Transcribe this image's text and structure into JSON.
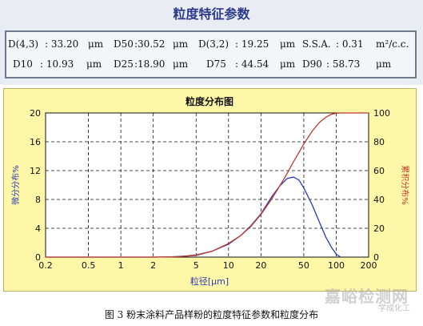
{
  "report": {
    "title": "粒度特征参数",
    "params": [
      {
        "label": "D(4,3)",
        "value": ": 33.20",
        "unit": "μm"
      },
      {
        "label": "D50",
        "value": ":30.52",
        "unit": "μm"
      },
      {
        "label": "D(3,2)",
        "value": ": 19.25",
        "unit": "μm"
      },
      {
        "label": "S.S.A.",
        "value": ": 0.31",
        "unit": "m²/c.c."
      },
      {
        "label": "D10",
        "value": ": 10.93",
        "unit": "μm"
      },
      {
        "label": "D25",
        "value": ":18.90",
        "unit": "μm"
      },
      {
        "label": "D75",
        "value": ": 44.54",
        "unit": "μm"
      },
      {
        "label": "D90",
        "value": ": 58.73",
        "unit": "μm"
      }
    ]
  },
  "chart_data": {
    "type": "line",
    "title": "粒度分布图",
    "xlabel": "粒径[μm]",
    "ylabel_left": "微分分布%",
    "ylabel_right": "累积分布%",
    "x_scale": "log",
    "xlim": [
      0.2,
      200
    ],
    "x_ticks": [
      0.2,
      0.5,
      1,
      2,
      5,
      10,
      20,
      50,
      100,
      200
    ],
    "y_left_lim": [
      0,
      20
    ],
    "y_left_ticks": [
      0,
      4,
      8,
      12,
      16,
      20
    ],
    "y_right_lim": [
      0,
      100
    ],
    "y_right_ticks": [
      0,
      20,
      40,
      60,
      80,
      100
    ],
    "grid": true,
    "colors": {
      "differential": "#2a3bb5",
      "cumulative": "#c0392b",
      "grid": "#111111",
      "background": "#ffffff"
    },
    "series": [
      {
        "axis": "left",
        "x": [
          0.2,
          1,
          2,
          3,
          4,
          5,
          7,
          10,
          13,
          16,
          20,
          25,
          30,
          35,
          40,
          45,
          50,
          60,
          70,
          80,
          90,
          100,
          110
        ],
        "y": [
          0,
          0,
          0,
          0.05,
          0.15,
          0.3,
          0.8,
          1.8,
          3.0,
          4.3,
          6.0,
          8.3,
          9.9,
          10.9,
          11.1,
          10.7,
          9.6,
          7.2,
          4.8,
          2.8,
          1.4,
          0.4,
          0
        ]
      },
      {
        "axis": "right",
        "x": [
          0.2,
          1,
          2,
          3,
          4,
          5,
          7,
          10,
          13,
          16,
          20,
          25,
          30,
          35,
          40,
          45,
          50,
          60,
          70,
          80,
          90,
          100,
          110,
          200
        ],
        "y": [
          0,
          0,
          0,
          0.2,
          0.6,
          1.2,
          4,
          9.5,
          15,
          21,
          29.5,
          40,
          49.5,
          58,
          66,
          72.5,
          78.5,
          87.5,
          93.5,
          97,
          99,
          99.8,
          100,
          100
        ]
      }
    ]
  },
  "caption": "图 3  粉末涂料产品样粉的粒度特征参数和粒度分布",
  "watermark": {
    "main": "嘉峪检测网",
    "sub": "学成化工"
  }
}
